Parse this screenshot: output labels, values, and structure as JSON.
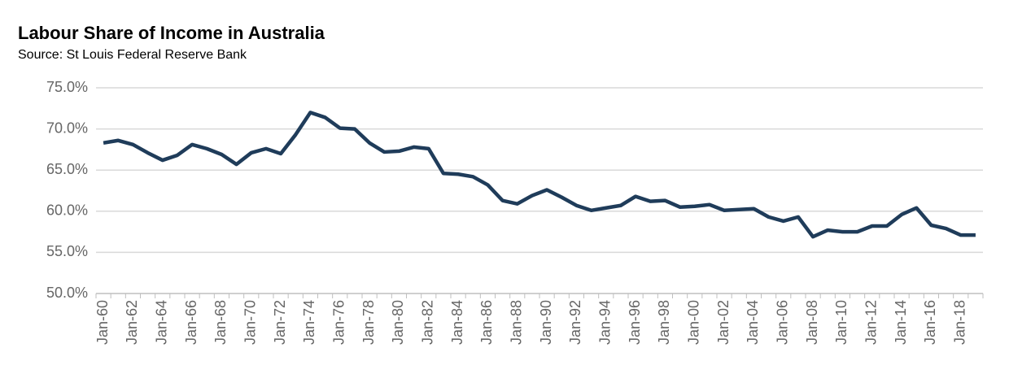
{
  "chart_data": {
    "type": "line",
    "title": "Labour Share of Income in Australia",
    "subtitle": "Source: St Louis Federal Reserve Bank",
    "categories": [
      "Jan-60",
      null,
      "Jan-62",
      null,
      "Jan-64",
      null,
      "Jan-66",
      null,
      "Jan-68",
      null,
      "Jan-70",
      null,
      "Jan-72",
      null,
      "Jan-74",
      null,
      "Jan-76",
      null,
      "Jan-78",
      null,
      "Jan-80",
      null,
      "Jan-82",
      null,
      "Jan-84",
      null,
      "Jan-86",
      null,
      "Jan-88",
      null,
      "Jan-90",
      null,
      "Jan-92",
      null,
      "Jan-94",
      null,
      "Jan-96",
      null,
      "Jan-98",
      null,
      "Jan-00",
      null,
      "Jan-02",
      null,
      "Jan-04",
      null,
      "Jan-06",
      null,
      "Jan-08",
      null,
      "Jan-10",
      null,
      "Jan-12",
      null,
      "Jan-14",
      null,
      "Jan-16",
      null,
      "Jan-18",
      null
    ],
    "values": [
      68.3,
      68.6,
      68.1,
      67.1,
      66.2,
      66.8,
      68.1,
      67.6,
      66.9,
      65.7,
      67.1,
      67.6,
      67.0,
      69.3,
      72.0,
      71.4,
      70.1,
      70.0,
      68.3,
      67.2,
      67.3,
      67.8,
      67.6,
      64.6,
      64.5,
      64.2,
      63.2,
      61.3,
      60.9,
      61.9,
      62.6,
      61.7,
      60.7,
      60.1,
      60.4,
      60.7,
      61.8,
      61.2,
      61.3,
      60.5,
      60.6,
      60.8,
      60.1,
      60.2,
      60.3,
      59.3,
      58.8,
      59.3,
      56.9,
      57.7,
      57.5,
      57.5,
      58.2,
      58.2,
      59.6,
      60.4,
      58.3,
      57.9,
      57.1,
      57.1
    ],
    "color": "#1f3c5a",
    "ylim": [
      50,
      75
    ],
    "yticks": [
      {
        "value": 50,
        "label": "50.0%"
      },
      {
        "value": 55,
        "label": "55.0%"
      },
      {
        "value": 60,
        "label": "60.0%"
      },
      {
        "value": 65,
        "label": "65.0%"
      },
      {
        "value": 70,
        "label": "70.0%"
      },
      {
        "value": 75,
        "label": "75.0%"
      }
    ],
    "grid": true
  }
}
